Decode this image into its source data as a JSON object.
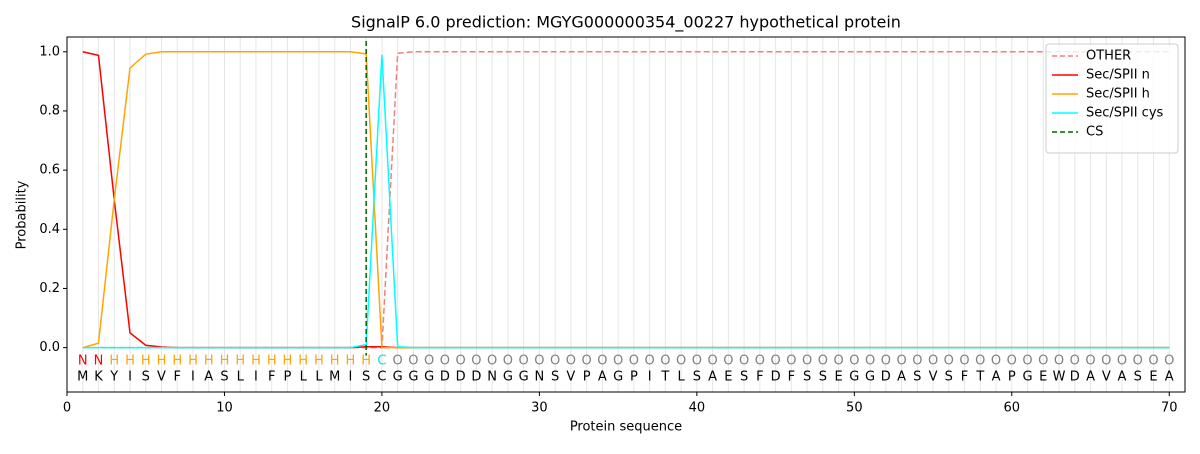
{
  "chart_data": {
    "type": "line",
    "title": "SignalP 6.0 prediction: MGYG000000354_00227 hypothetical protein",
    "x_label": "Protein sequence",
    "y_label": "Probability",
    "x": [
      1,
      2,
      3,
      4,
      5,
      6,
      7,
      8,
      9,
      10,
      11,
      12,
      13,
      14,
      15,
      16,
      17,
      18,
      19,
      20,
      21,
      22,
      23,
      24,
      25,
      26,
      27,
      28,
      29,
      30,
      31,
      32,
      33,
      34,
      35,
      36,
      37,
      38,
      39,
      40,
      41,
      42,
      43,
      44,
      45,
      46,
      47,
      48,
      49,
      50,
      51,
      52,
      53,
      54,
      55,
      56,
      57,
      58,
      59,
      60,
      61,
      62,
      63,
      64,
      65,
      66,
      67,
      68,
      69,
      70
    ],
    "sequence": [
      "M",
      "K",
      "Y",
      "I",
      "S",
      "V",
      "F",
      "I",
      "A",
      "S",
      "L",
      "I",
      "F",
      "P",
      "L",
      "L",
      "M",
      "I",
      "S",
      "C",
      "G",
      "G",
      "G",
      "D",
      "D",
      "D",
      "N",
      "G",
      "G",
      "N",
      "S",
      "V",
      "P",
      "A",
      "G",
      "P",
      "I",
      "T",
      "L",
      "S",
      "A",
      "E",
      "S",
      "F",
      "D",
      "F",
      "S",
      "S",
      "E",
      "G",
      "G",
      "D",
      "A",
      "S",
      "V",
      "S",
      "F",
      "T",
      "A",
      "P",
      "G",
      "E",
      "W",
      "D",
      "A",
      "V",
      "A",
      "S",
      "E",
      "A"
    ],
    "region_labels": [
      "N",
      "N",
      "H",
      "H",
      "H",
      "H",
      "H",
      "H",
      "H",
      "H",
      "H",
      "H",
      "H",
      "H",
      "H",
      "H",
      "H",
      "H",
      "H",
      "C",
      "O",
      "O",
      "O",
      "O",
      "O",
      "O",
      "O",
      "O",
      "O",
      "O",
      "O",
      "O",
      "O",
      "O",
      "O",
      "O",
      "O",
      "O",
      "O",
      "O",
      "O",
      "O",
      "O",
      "O",
      "O",
      "O",
      "O",
      "O",
      "O",
      "O",
      "O",
      "O",
      "O",
      "O",
      "O",
      "O",
      "O",
      "O",
      "O",
      "O",
      "O",
      "O",
      "O",
      "O",
      "O",
      "O",
      "O",
      "O",
      "O",
      "O"
    ],
    "region_colors": {
      "N": "#ff0000",
      "H": "#ffa500",
      "C": "#00e5e5",
      "O": "#808080"
    },
    "series": [
      {
        "name": "OTHER",
        "color": "#f08080",
        "dash": true,
        "values": [
          0,
          0,
          0,
          0,
          0,
          0,
          0,
          0,
          0,
          0,
          0,
          0,
          0,
          0,
          0,
          0,
          0,
          0,
          0,
          0,
          0.995,
          1,
          1,
          1,
          1,
          1,
          1,
          1,
          1,
          1,
          1,
          1,
          1,
          1,
          1,
          1,
          1,
          1,
          1,
          1,
          1,
          1,
          1,
          1,
          1,
          1,
          1,
          1,
          1,
          1,
          1,
          1,
          1,
          1,
          1,
          1,
          1,
          1,
          1,
          1,
          1,
          1,
          1,
          1,
          1,
          1,
          1,
          1,
          1,
          1
        ]
      },
      {
        "name": "Sec/SPII n",
        "color": "#ff0000",
        "dash": false,
        "values": [
          1.0,
          0.988,
          0.5,
          0.05,
          0.008,
          0.002,
          0,
          0,
          0,
          0,
          0,
          0,
          0,
          0,
          0,
          0,
          0,
          0,
          0.003,
          0.003,
          0,
          0,
          0,
          0,
          0,
          0,
          0,
          0,
          0,
          0,
          0,
          0,
          0,
          0,
          0,
          0,
          0,
          0,
          0,
          0,
          0,
          0,
          0,
          0,
          0,
          0,
          0,
          0,
          0,
          0,
          0,
          0,
          0,
          0,
          0,
          0,
          0,
          0,
          0,
          0,
          0,
          0,
          0,
          0,
          0,
          0,
          0,
          0,
          0,
          0
        ]
      },
      {
        "name": "Sec/SPII h",
        "color": "#ffa500",
        "dash": false,
        "values": [
          0,
          0.015,
          0.5,
          0.945,
          0.992,
          1,
          1,
          1,
          1,
          1,
          1,
          1,
          1,
          1,
          1,
          1,
          1,
          1,
          0.993,
          0,
          0,
          0,
          0,
          0,
          0,
          0,
          0,
          0,
          0,
          0,
          0,
          0,
          0,
          0,
          0,
          0,
          0,
          0,
          0,
          0,
          0,
          0,
          0,
          0,
          0,
          0,
          0,
          0,
          0,
          0,
          0,
          0,
          0,
          0,
          0,
          0,
          0,
          0,
          0,
          0,
          0,
          0,
          0,
          0,
          0,
          0,
          0,
          0,
          0,
          0
        ]
      },
      {
        "name": "Sec/SPII cys",
        "color": "#00ffff",
        "dash": false,
        "values": [
          0,
          0,
          0,
          0,
          0,
          0,
          0,
          0,
          0,
          0,
          0,
          0,
          0,
          0,
          0,
          0,
          0,
          0,
          0.01,
          0.99,
          0.003,
          0,
          0,
          0,
          0,
          0,
          0,
          0,
          0,
          0,
          0,
          0,
          0,
          0,
          0,
          0,
          0,
          0,
          0,
          0,
          0,
          0,
          0,
          0,
          0,
          0,
          0,
          0,
          0,
          0,
          0,
          0,
          0,
          0,
          0,
          0,
          0,
          0,
          0,
          0,
          0,
          0,
          0,
          0,
          0,
          0,
          0,
          0,
          0,
          0
        ]
      }
    ],
    "cs": {
      "name": "CS",
      "color": "#006400",
      "x": 19
    },
    "xlim": [
      0,
      71
    ],
    "ylim": [
      -0.15,
      1.05
    ],
    "xticks": [
      0,
      10,
      20,
      30,
      40,
      50,
      60,
      70
    ],
    "yticks": [
      {
        "value": 0,
        "label": "0.0"
      },
      {
        "value": 0.2,
        "label": "0.2"
      },
      {
        "value": 0.4,
        "label": "0.4"
      },
      {
        "value": 0.6,
        "label": "0.6"
      },
      {
        "value": 0.8,
        "label": "0.8"
      },
      {
        "value": 1.0,
        "label": "1.0"
      }
    ],
    "legend": "upper right"
  }
}
